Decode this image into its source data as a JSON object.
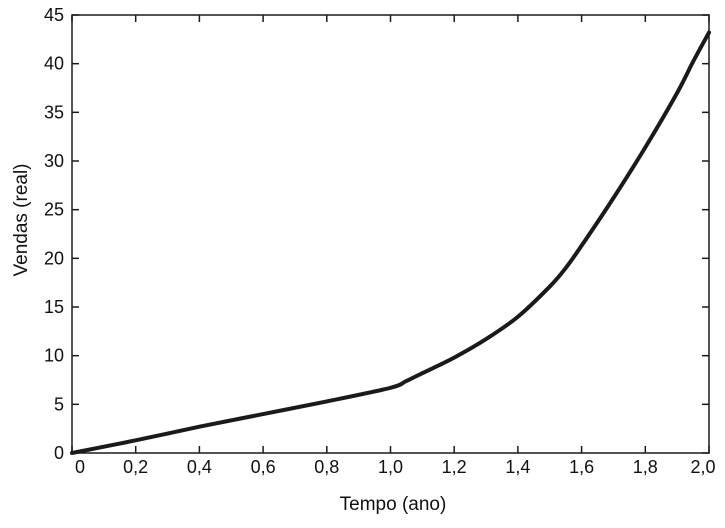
{
  "chart_data": {
    "type": "line",
    "title": "",
    "xlabel": "Tempo (ano)",
    "ylabel": "Vendas (real)",
    "xlim": [
      0,
      2.0
    ],
    "ylim": [
      0,
      45
    ],
    "xticks": [
      "0",
      "0,2",
      "0,4",
      "0,6",
      "0,8",
      "1,0",
      "1,2",
      "1,4",
      "1,6",
      "1,8",
      "2,0"
    ],
    "xtick_values": [
      0,
      0.2,
      0.4,
      0.6,
      0.8,
      1.0,
      1.2,
      1.4,
      1.6,
      1.8,
      2.0
    ],
    "yticks": [
      "0",
      "5",
      "10",
      "15",
      "20",
      "25",
      "30",
      "35",
      "40",
      "45"
    ],
    "ytick_values": [
      0,
      5,
      10,
      15,
      20,
      25,
      30,
      35,
      40,
      45
    ],
    "grid": false,
    "legend": "none",
    "series": [
      {
        "x": [
          0,
          0.2,
          0.4,
          0.6,
          0.8,
          1.0,
          1.05,
          1.1,
          1.2,
          1.3,
          1.4,
          1.5,
          1.55,
          1.6,
          1.7,
          1.8,
          1.9,
          1.95,
          2.0
        ],
        "y": [
          0,
          1.3,
          2.7,
          4.0,
          5.3,
          6.7,
          7.4,
          8.2,
          9.8,
          11.7,
          14.0,
          17.1,
          19.0,
          21.3,
          26.2,
          31.4,
          37.0,
          40.2,
          43.2
        ],
        "color": "#1a1a1a"
      }
    ]
  }
}
